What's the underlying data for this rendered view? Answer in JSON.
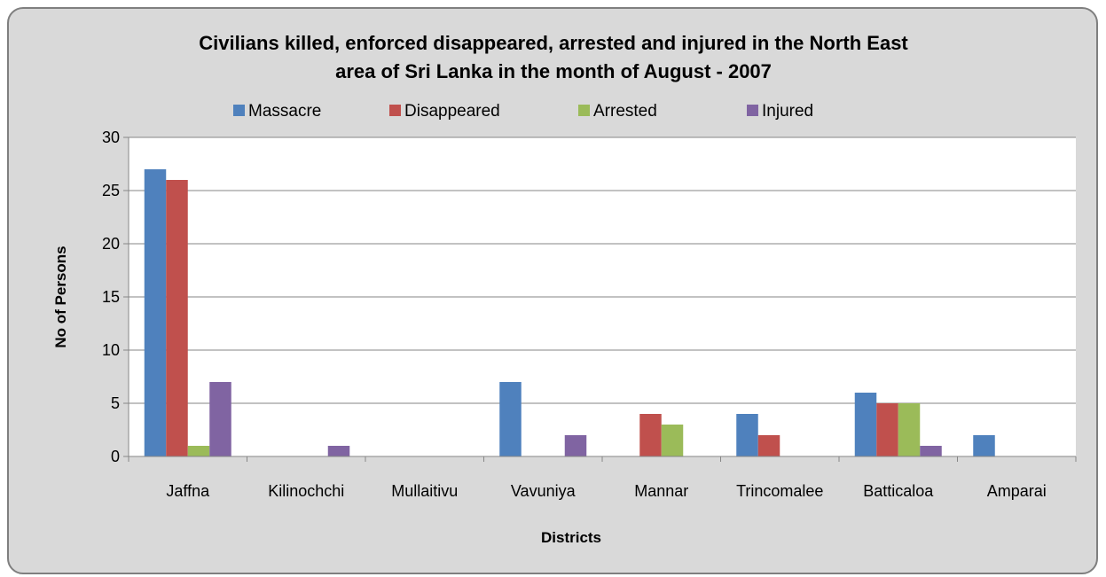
{
  "chart_data": {
    "type": "bar",
    "title": "Civilians killed, enforced disappeared, arrested and injured in the North East area of Sri Lanka in the month of August - 2007",
    "title_lines": [
      "Civilians killed, enforced disappeared, arrested and injured in the North East",
      "area of Sri Lanka in the month of August - 2007"
    ],
    "xlabel": "Districts",
    "ylabel": "No of Persons",
    "ylim": [
      0,
      30
    ],
    "yticks": [
      0,
      5,
      10,
      15,
      20,
      25,
      30
    ],
    "grid": true,
    "legend_position": "top",
    "categories": [
      "Jaffna",
      "Kilinochchi",
      "Mullaitivu",
      "Vavuniya",
      "Mannar",
      "Trincomalee",
      "Batticaloa",
      "Amparai"
    ],
    "series": [
      {
        "name": "Massacre",
        "color": "#4f81bd",
        "values": [
          27,
          0,
          0,
          7,
          0,
          4,
          6,
          2
        ]
      },
      {
        "name": "Disappeared",
        "color": "#c0504d",
        "values": [
          26,
          0,
          0,
          0,
          4,
          2,
          5,
          0
        ]
      },
      {
        "name": "Arrested",
        "color": "#9bbb59",
        "values": [
          1,
          0,
          0,
          0,
          3,
          0,
          5,
          0
        ]
      },
      {
        "name": "Injured",
        "color": "#8064a2",
        "values": [
          7,
          1,
          0,
          2,
          0,
          0,
          1,
          0
        ]
      }
    ]
  }
}
